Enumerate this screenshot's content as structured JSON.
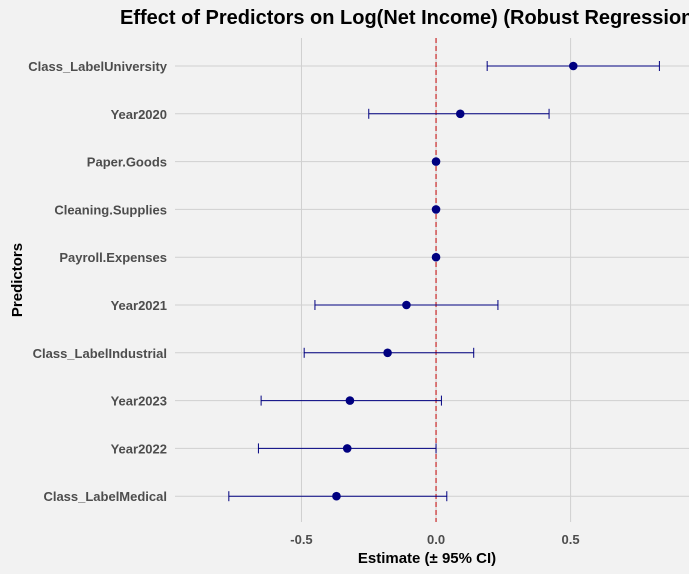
{
  "chart_data": {
    "type": "forest",
    "title": "Effect of Predictors on Log(Net Income) (Robust Regression)",
    "xlabel": "Estimate (± 95% CI)",
    "ylabel": "Predictors",
    "xlim": [
      -0.97,
      0.94
    ],
    "xticks": [
      -0.5,
      0.0,
      0.5
    ],
    "xtick_labels": [
      "-0.5",
      "0.0",
      "0.5"
    ],
    "reference_line": 0,
    "grid": true,
    "colors": {
      "point": "#000080",
      "errorbar": "#000080",
      "refline": "#c00000",
      "background": "#f2f2f2",
      "grid": "#d0d0d0"
    },
    "predictors": [
      {
        "label": "Class_LabelUniversity",
        "estimate": 0.51,
        "lower": 0.19,
        "upper": 0.83
      },
      {
        "label": "Year2020",
        "estimate": 0.09,
        "lower": -0.25,
        "upper": 0.42
      },
      {
        "label": "Paper.Goods",
        "estimate": 0.0,
        "lower": 0.0,
        "upper": 0.0
      },
      {
        "label": "Cleaning.Supplies",
        "estimate": 0.0,
        "lower": 0.0,
        "upper": 0.0
      },
      {
        "label": "Payroll.Expenses",
        "estimate": 0.0,
        "lower": 0.0,
        "upper": 0.0
      },
      {
        "label": "Year2021",
        "estimate": -0.11,
        "lower": -0.45,
        "upper": 0.23
      },
      {
        "label": "Class_LabelIndustrial",
        "estimate": -0.18,
        "lower": -0.49,
        "upper": 0.14
      },
      {
        "label": "Year2023",
        "estimate": -0.32,
        "lower": -0.65,
        "upper": 0.02
      },
      {
        "label": "Year2022",
        "estimate": -0.33,
        "lower": -0.66,
        "upper": 0.0
      },
      {
        "label": "Class_LabelMedical",
        "estimate": -0.37,
        "lower": -0.77,
        "upper": 0.04
      }
    ]
  }
}
